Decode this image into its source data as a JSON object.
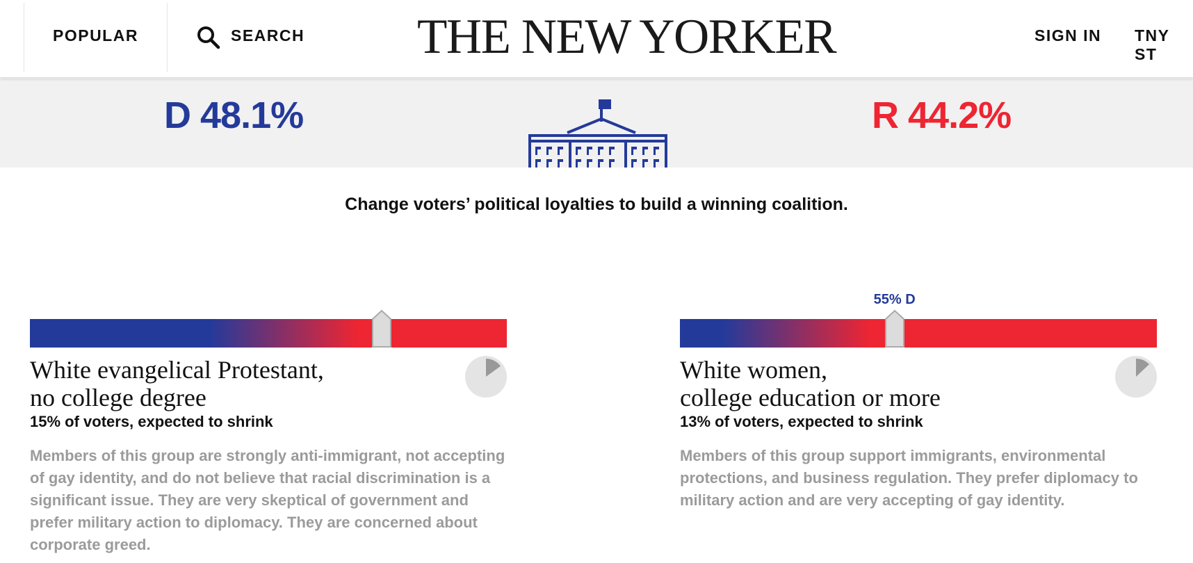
{
  "header": {
    "popular_label": "POPULAR",
    "search_label": "SEARCH",
    "logo_text": "THE NEW YORKER",
    "sign_in_label": "SIGN IN",
    "store_label": "TNY ST"
  },
  "score": {
    "democrat": "D 48.1%",
    "republican": "R 44.2%",
    "democrat_color": "#243a9a",
    "republican_color": "#ee2532"
  },
  "instructions": "Change voters’ political loyalties to build a winning coalition.",
  "groups": [
    {
      "title_line1": "White evangelical Protestant,",
      "title_line2": "no college degree",
      "stat": "15% of voters, expected to shrink",
      "description": "Members of this group are strongly anti-immigrant, not accepting of gay identity, and do not believe that racial discrimination is a significant issue. They are very skeptical of government and prefer military action to diplomacy. They are concerned about corporate greed.",
      "lean_label": "",
      "slider_position": 0.738,
      "pie_share": 0.15
    },
    {
      "title_line1": "White women,",
      "title_line2": "college education or more",
      "stat": "13% of voters, expected to shrink",
      "description": "Members of this group support immigrants, environmental protections, and business regulation. They prefer diplomacy to military action and are very accepting of gay identity.",
      "lean_label": "55% D",
      "slider_position": 0.45,
      "pie_share": 0.13
    }
  ],
  "icons": {
    "search": "search-icon",
    "capitol": "white-house-icon",
    "pie": "pie-chart-icon"
  }
}
